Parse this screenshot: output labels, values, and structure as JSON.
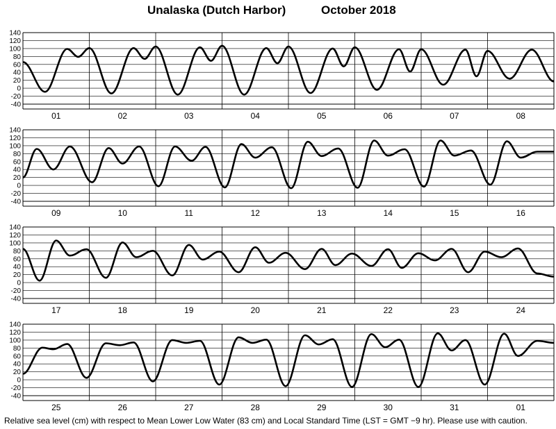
{
  "header": {
    "location": "Unalaska (Dutch Harbor)",
    "month_year": "October   2018"
  },
  "footer": "Relative sea level (cm) with respect to Mean Lower Low Water (83 cm) and Local Standard Time (LST = GMT −9 hr). Please use with caution.",
  "chart_data": {
    "type": "line",
    "title": "Unalaska (Dutch Harbor)     October   2018",
    "ylabel": "",
    "xlabel": "",
    "unit": "cm",
    "ylim": [
      -40,
      140
    ],
    "yticks": [
      -40,
      -20,
      0,
      20,
      40,
      60,
      80,
      100,
      120,
      140
    ],
    "grid": true,
    "panels": [
      {
        "days": [
          "01",
          "02",
          "03",
          "04",
          "05",
          "06",
          "07",
          "08"
        ],
        "curve": [
          [
            0,
            66
          ],
          [
            8,
            -9
          ],
          [
            16,
            99
          ],
          [
            20,
            79
          ],
          [
            24,
            101
          ],
          [
            32,
            -13
          ],
          [
            40,
            101
          ],
          [
            44,
            74
          ],
          [
            48,
            105
          ],
          [
            56,
            -16
          ],
          [
            64,
            103
          ],
          [
            68,
            69
          ],
          [
            72,
            107
          ],
          [
            80,
            -16
          ],
          [
            88,
            101
          ],
          [
            92,
            63
          ],
          [
            96,
            105
          ],
          [
            104,
            -12
          ],
          [
            112,
            100
          ],
          [
            116,
            55
          ],
          [
            120,
            103
          ],
          [
            128,
            -4
          ],
          [
            136,
            98
          ],
          [
            140,
            42
          ],
          [
            144,
            98
          ],
          [
            152,
            9
          ],
          [
            160,
            97
          ],
          [
            164,
            30
          ],
          [
            168,
            94
          ],
          [
            176,
            24
          ],
          [
            184,
            97
          ],
          [
            192,
            17
          ]
        ]
      },
      {
        "days": [
          "09",
          "10",
          "11",
          "12",
          "13",
          "14",
          "15",
          "16"
        ],
        "curve": [
          [
            0,
            20
          ],
          [
            5,
            92
          ],
          [
            11,
            40
          ],
          [
            17,
            98
          ],
          [
            25,
            8
          ],
          [
            31,
            94
          ],
          [
            36,
            55
          ],
          [
            42,
            98
          ],
          [
            49,
            -2
          ],
          [
            55,
            98
          ],
          [
            61,
            62
          ],
          [
            66,
            97
          ],
          [
            73,
            -5
          ],
          [
            79,
            104
          ],
          [
            84,
            70
          ],
          [
            90,
            96
          ],
          [
            97,
            -7
          ],
          [
            103,
            110
          ],
          [
            108,
            74
          ],
          [
            114,
            93
          ],
          [
            121,
            -6
          ],
          [
            127,
            113
          ],
          [
            132,
            75
          ],
          [
            138,
            91
          ],
          [
            145,
            -3
          ],
          [
            151,
            113
          ],
          [
            156,
            75
          ],
          [
            162,
            88
          ],
          [
            169,
            2
          ],
          [
            175,
            111
          ],
          [
            180,
            70
          ],
          [
            186,
            85
          ],
          [
            192,
            85
          ]
        ]
      },
      {
        "days": [
          "17",
          "18",
          "19",
          "20",
          "21",
          "22",
          "23",
          "24"
        ],
        "curve": [
          [
            0,
            85
          ],
          [
            6,
            5
          ],
          [
            12,
            106
          ],
          [
            17,
            68
          ],
          [
            23,
            84
          ],
          [
            30,
            12
          ],
          [
            36,
            101
          ],
          [
            41,
            64
          ],
          [
            47,
            80
          ],
          [
            54,
            18
          ],
          [
            60,
            95
          ],
          [
            65,
            58
          ],
          [
            71,
            78
          ],
          [
            78,
            26
          ],
          [
            84,
            89
          ],
          [
            89,
            50
          ],
          [
            95,
            75
          ],
          [
            102,
            34
          ],
          [
            108,
            85
          ],
          [
            113,
            44
          ],
          [
            119,
            73
          ],
          [
            126,
            42
          ],
          [
            132,
            84
          ],
          [
            137,
            37
          ],
          [
            143,
            74
          ],
          [
            149,
            56
          ],
          [
            155,
            85
          ],
          [
            161,
            26
          ],
          [
            167,
            78
          ],
          [
            173,
            64
          ],
          [
            179,
            86
          ],
          [
            186,
            23
          ],
          [
            192,
            15
          ]
        ]
      },
      {
        "days": [
          "25",
          "26",
          "27",
          "28",
          "29",
          "30",
          "31",
          "01"
        ],
        "curve": [
          [
            0,
            15
          ],
          [
            7,
            81
          ],
          [
            11,
            77
          ],
          [
            16,
            90
          ],
          [
            23,
            5
          ],
          [
            30,
            92
          ],
          [
            35,
            87
          ],
          [
            40,
            94
          ],
          [
            47,
            -4
          ],
          [
            54,
            100
          ],
          [
            59,
            93
          ],
          [
            64,
            98
          ],
          [
            71,
            -12
          ],
          [
            78,
            107
          ],
          [
            83,
            93
          ],
          [
            88,
            101
          ],
          [
            95,
            -16
          ],
          [
            102,
            112
          ],
          [
            107,
            89
          ],
          [
            112,
            102
          ],
          [
            119,
            -18
          ],
          [
            126,
            115
          ],
          [
            131,
            82
          ],
          [
            136,
            101
          ],
          [
            143,
            -18
          ],
          [
            150,
            117
          ],
          [
            155,
            74
          ],
          [
            160,
            100
          ],
          [
            167,
            -12
          ],
          [
            174,
            116
          ],
          [
            179,
            60
          ],
          [
            186,
            98
          ],
          [
            192,
            93
          ]
        ]
      }
    ]
  }
}
